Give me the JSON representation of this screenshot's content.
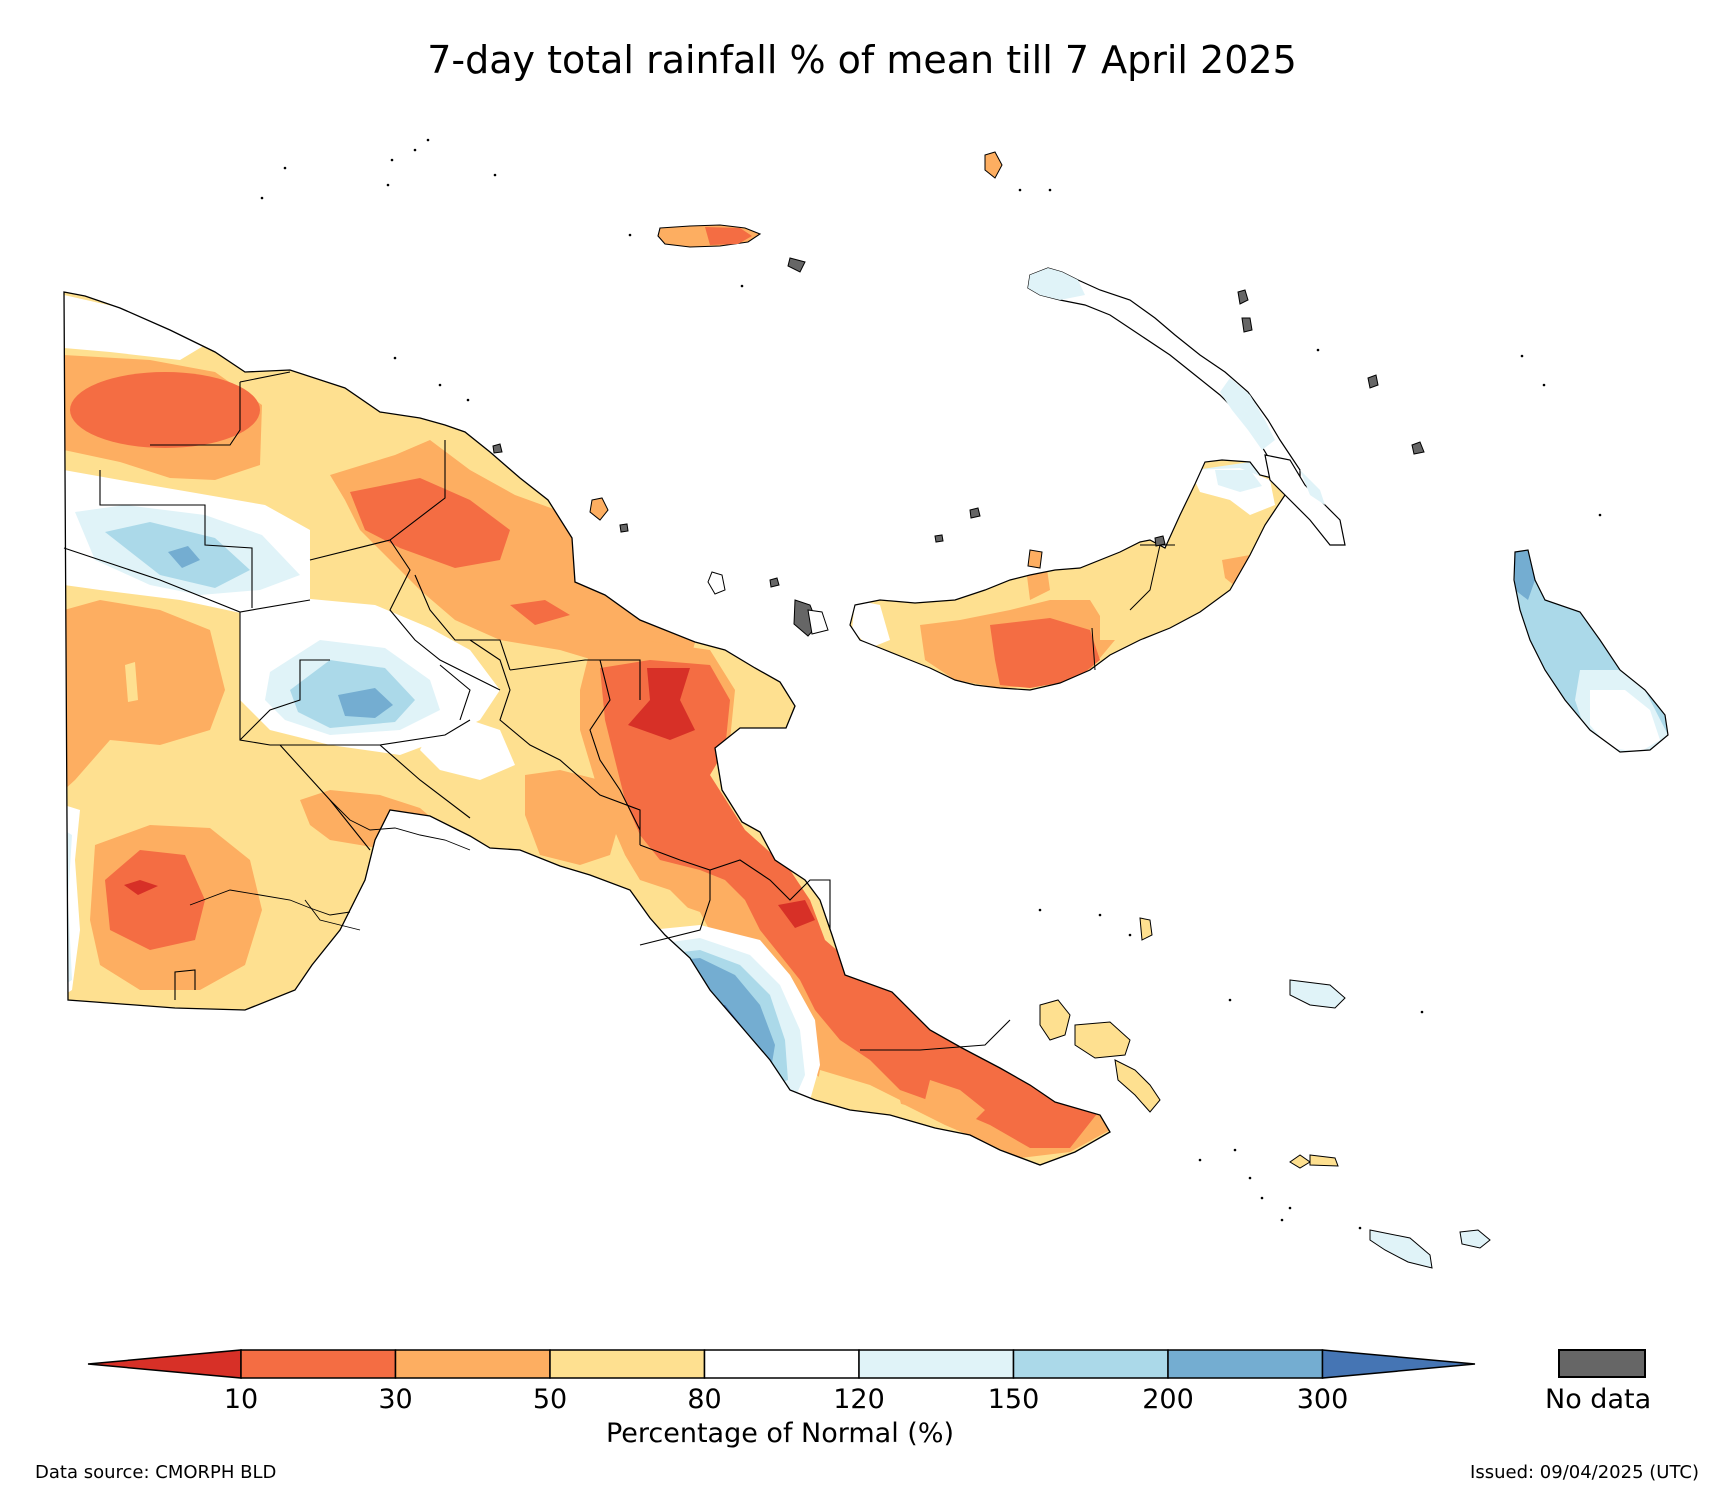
{
  "title": "7-day total rainfall % of mean till 7 April 2025",
  "legend": {
    "label": "Percentage of Normal (%)",
    "ticks": [
      "10",
      "30",
      "50",
      "80",
      "120",
      "150",
      "200",
      "300"
    ],
    "bins": [
      {
        "color": "#d73027"
      },
      {
        "color": "#f46d43"
      },
      {
        "color": "#fdae61"
      },
      {
        "color": "#fee090"
      },
      {
        "color": "#ffffff"
      },
      {
        "color": "#e0f3f8"
      },
      {
        "color": "#abd9e9"
      },
      {
        "color": "#74add1"
      },
      {
        "color": "#4575b4"
      }
    ],
    "nodata_label": "No data",
    "nodata_color": "#666666"
  },
  "footer": {
    "source": "Data source: CMORPH BLD",
    "issued": "Issued: 09/04/2025 (UTC)"
  }
}
